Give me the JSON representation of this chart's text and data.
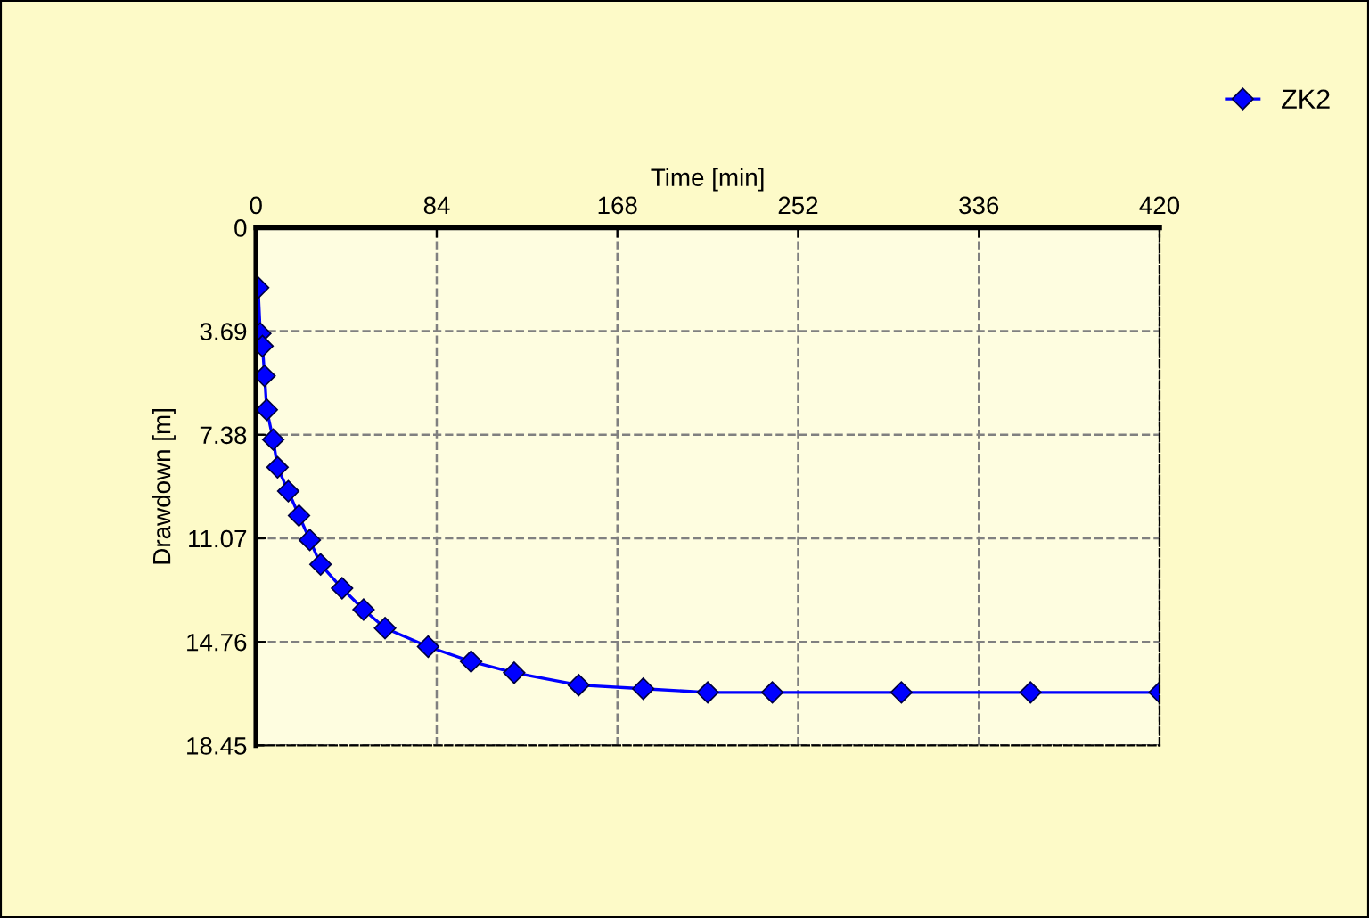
{
  "chart_data": {
    "type": "line",
    "xlabel": "Time [min]",
    "ylabel": "Drawdown [m]",
    "x": [
      1,
      2,
      3,
      4,
      5,
      8,
      10,
      15,
      20,
      25,
      30,
      40,
      50,
      60,
      80,
      100,
      120,
      150,
      180,
      210,
      240,
      300,
      360,
      420
    ],
    "series": [
      {
        "name": "ZK2",
        "color": "#0000ff",
        "values": [
          2.14,
          3.77,
          4.22,
          5.28,
          6.49,
          7.55,
          8.54,
          9.39,
          10.26,
          11.13,
          12.0,
          12.85,
          13.61,
          14.27,
          14.93,
          15.46,
          15.86,
          16.3,
          16.43,
          16.56,
          16.56,
          16.56,
          16.56,
          16.56
        ]
      }
    ],
    "xlim": [
      0,
      420
    ],
    "xticks": [
      0,
      84,
      168,
      252,
      336,
      420
    ],
    "ylim": [
      18.45,
      0
    ],
    "yticks": [
      0,
      3.69,
      7.38,
      11.07,
      14.76,
      18.45
    ],
    "grid": true,
    "legend": "top right",
    "marker": "diamond",
    "line_style": "solid"
  }
}
